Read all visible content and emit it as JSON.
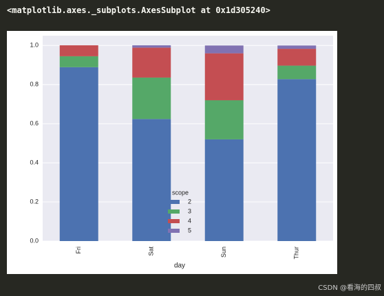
{
  "output_text": "<matplotlib.axes._subplots.AxesSubplot at 0x1d305240>",
  "watermark": "CSDN @看海的四叔",
  "chart_data": {
    "type": "stacked-bar",
    "x_label": "day",
    "categories": [
      "Fri",
      "Sat",
      "Sun",
      "Thur"
    ],
    "legend_title": "scope",
    "series": [
      {
        "name": "2",
        "color": "#4c72b0",
        "values": [
          0.889,
          0.624,
          0.52,
          0.828
        ]
      },
      {
        "name": "3",
        "color": "#55a868",
        "values": [
          0.056,
          0.212,
          0.2,
          0.069
        ]
      },
      {
        "name": "4",
        "color": "#c44e52",
        "values": [
          0.056,
          0.153,
          0.24,
          0.086
        ]
      },
      {
        "name": "5",
        "color": "#8172b2",
        "values": [
          0,
          0.012,
          0.04,
          0.017
        ]
      }
    ],
    "ylim": [
      0,
      1.05
    ],
    "yticks": [
      {
        "value": 0,
        "label": "0.0"
      },
      {
        "value": 0.2,
        "label": "0.2"
      },
      {
        "value": 0.4,
        "label": "0.4"
      },
      {
        "value": 0.6,
        "label": "0.6"
      },
      {
        "value": 0.8,
        "label": "0.8"
      },
      {
        "value": 1,
        "label": "1.0"
      }
    ],
    "grid": true,
    "legend": "lower center"
  }
}
